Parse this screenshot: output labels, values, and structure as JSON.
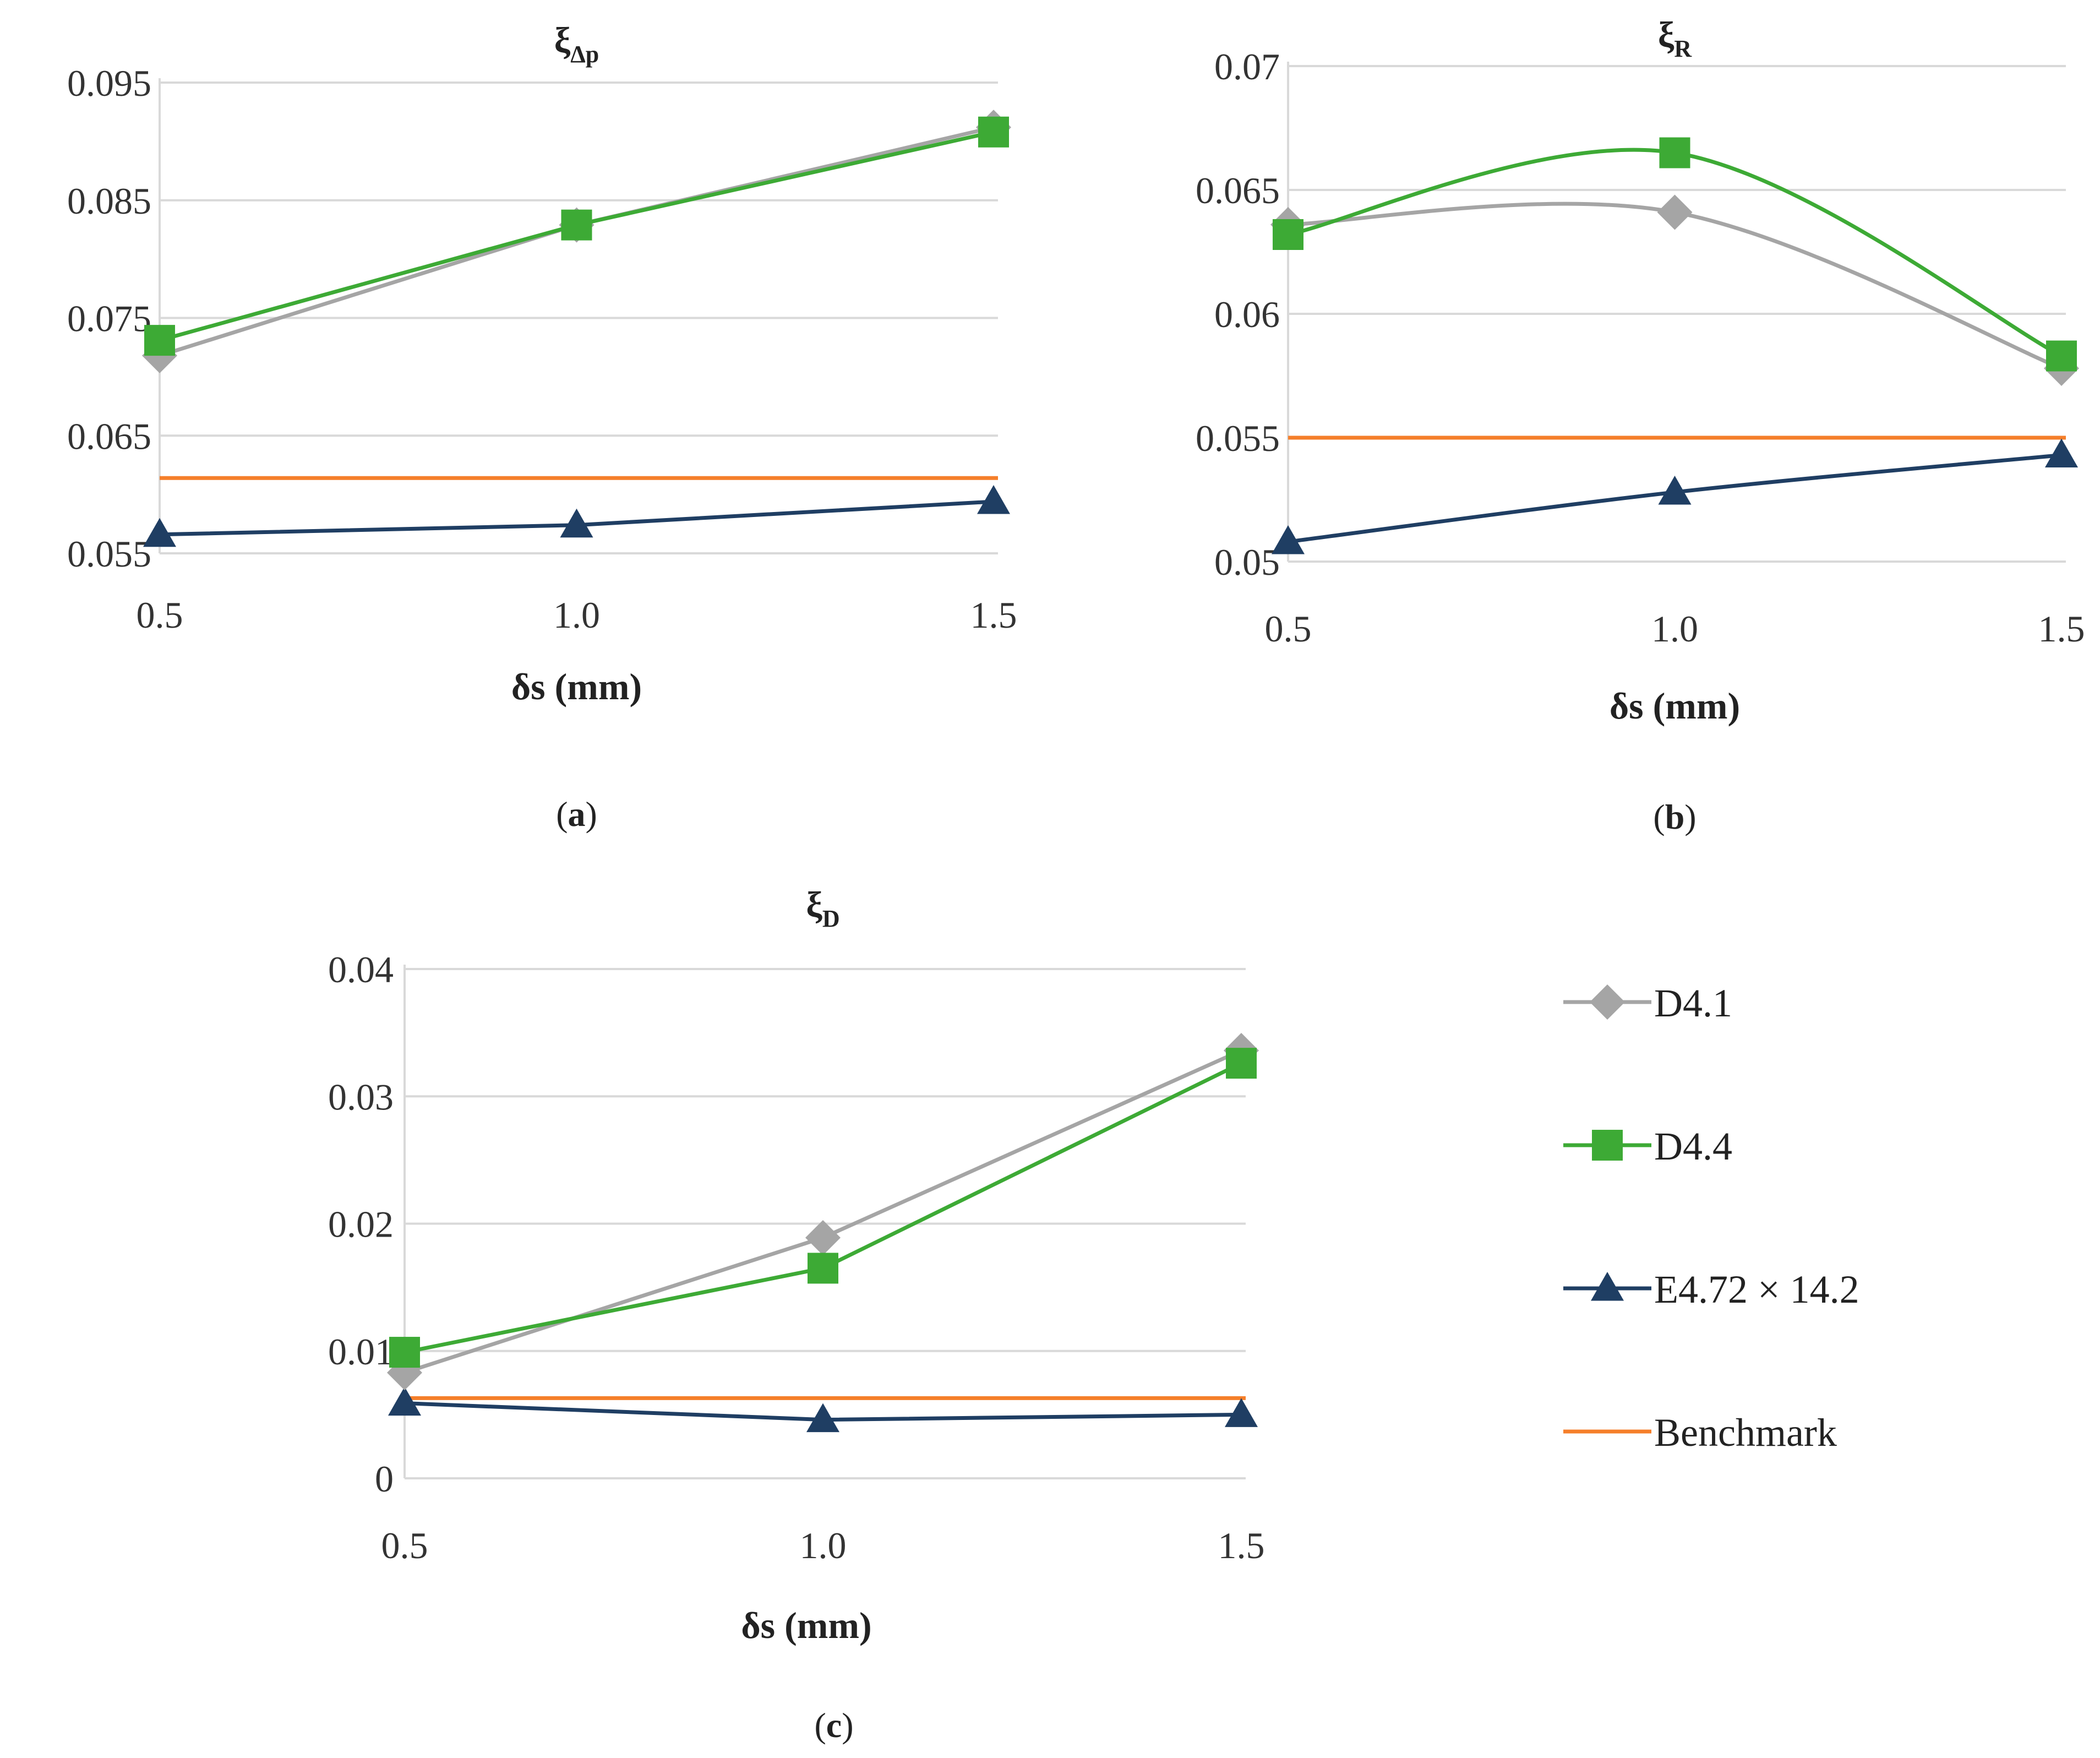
{
  "series_styles": [
    {
      "name": "D4.1",
      "color": "#A5A5A5",
      "marker": "diamond"
    },
    {
      "name": "D4.4",
      "color": "#3DAA35",
      "marker": "square"
    },
    {
      "name": "E4.72 × 14.2",
      "color": "#1F3E63",
      "marker": "triangle"
    },
    {
      "name": "Benchmark",
      "color": "#F57F2A",
      "marker": "none"
    }
  ],
  "legend": {
    "items": [
      "D4.1",
      "D4.4",
      "E4.72 × 14.2",
      "Benchmark"
    ]
  },
  "chart_data": [
    {
      "id": "a",
      "type": "line",
      "panel_label": "(a)",
      "title": "ξ",
      "title_subscript": "Δp",
      "xlabel": "δs (mm)",
      "ylabel": "",
      "x": [
        0.5,
        1.0,
        1.5
      ],
      "x_tick_labels": [
        "0.5",
        "1.0",
        "1.5"
      ],
      "y_ticks": [
        0.055,
        0.065,
        0.075,
        0.085,
        0.095
      ],
      "y_tick_labels": [
        "0.055",
        "0.065",
        "0.075",
        "0.085",
        "0.095"
      ],
      "ylim": [
        0.055,
        0.095
      ],
      "grid": true,
      "smooth": false,
      "series": [
        {
          "name": "D4.1",
          "values": [
            0.0718,
            0.0829,
            0.0912
          ]
        },
        {
          "name": "D4.4",
          "values": [
            0.0731,
            0.0829,
            0.0908
          ]
        },
        {
          "name": "E4.72 × 14.2",
          "values": [
            0.0566,
            0.0574,
            0.0594
          ]
        },
        {
          "name": "Benchmark",
          "values": [
            0.0614,
            0.0614,
            0.0614
          ]
        }
      ]
    },
    {
      "id": "b",
      "type": "line",
      "panel_label": "(b)",
      "title": "ξ",
      "title_subscript": "R",
      "xlabel": "δs (mm)",
      "ylabel": "",
      "x": [
        0.5,
        1.0,
        1.5
      ],
      "x_tick_labels": [
        "0.5",
        "1.0",
        "1.5"
      ],
      "y_ticks": [
        0.05,
        0.055,
        0.06,
        0.065,
        0.07
      ],
      "y_tick_labels": [
        "0.05",
        "0.055",
        "0.06",
        "0.065",
        "0.07"
      ],
      "ylim": [
        0.05,
        0.07
      ],
      "grid": true,
      "smooth": true,
      "series": [
        {
          "name": "D4.1",
          "values": [
            0.0636,
            0.0641,
            0.0578
          ]
        },
        {
          "name": "D4.4",
          "values": [
            0.0632,
            0.0665,
            0.0583
          ]
        },
        {
          "name": "E4.72 × 14.2",
          "values": [
            0.0508,
            0.0528,
            0.0543
          ]
        },
        {
          "name": "Benchmark",
          "values": [
            0.055,
            0.055,
            0.055
          ]
        }
      ]
    },
    {
      "id": "c",
      "type": "line",
      "panel_label": "(c)",
      "title": "ξ",
      "title_subscript": "D",
      "xlabel": "δs (mm)",
      "ylabel": "",
      "x": [
        0.5,
        1.0,
        1.5
      ],
      "x_tick_labels": [
        "0.5",
        "1.0",
        "1.5"
      ],
      "y_ticks": [
        0,
        0.01,
        0.02,
        0.03,
        0.04
      ],
      "y_tick_labels": [
        "0",
        "0.01",
        "0.02",
        "0.03",
        "0.04"
      ],
      "ylim": [
        0,
        0.04
      ],
      "grid": true,
      "smooth": false,
      "series": [
        {
          "name": "D4.1",
          "values": [
            0.0083,
            0.0189,
            0.0336
          ]
        },
        {
          "name": "D4.4",
          "values": [
            0.0099,
            0.0165,
            0.0326
          ]
        },
        {
          "name": "E4.72 × 14.2",
          "values": [
            0.0059,
            0.0046,
            0.005
          ]
        },
        {
          "name": "Benchmark",
          "values": [
            0.0063,
            0.0063,
            0.0063
          ]
        }
      ]
    }
  ]
}
